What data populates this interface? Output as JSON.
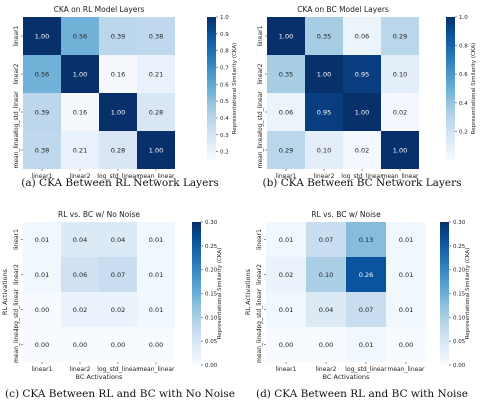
{
  "chart_data": [
    {
      "type": "heatmap",
      "title": "CKA on RL Model Layers",
      "caption": "(a) CKA Between RL Network Layers",
      "rows": [
        "linear1",
        "linear2",
        "log_std_linear",
        "mean_linear"
      ],
      "cols": [
        "linear1",
        "linear2",
        "log_std_linear",
        "mean_linear"
      ],
      "values": [
        [
          1.0,
          0.56,
          0.39,
          0.38
        ],
        [
          0.56,
          1.0,
          0.16,
          0.21
        ],
        [
          0.39,
          0.16,
          1.0,
          0.28
        ],
        [
          0.38,
          0.21,
          0.28,
          1.0
        ]
      ],
      "xlabel": "",
      "ylabel": "",
      "colorbar": {
        "label": "Representational Similarity (CKA)",
        "min": 0.15,
        "max": 1.0,
        "ticks": [
          "0.2",
          "0.3",
          "0.4",
          "0.5",
          "0.6",
          "0.7",
          "0.8",
          "0.9",
          "1.0"
        ]
      }
    },
    {
      "type": "heatmap",
      "title": "CKA on BC Model Layers",
      "caption": "(b) CKA Between BC Network Layers",
      "rows": [
        "linear1",
        "linear2",
        "log_std_linear",
        "mean_linear"
      ],
      "cols": [
        "linear1",
        "linear2",
        "log_std_linear",
        "mean_linear"
      ],
      "values": [
        [
          1.0,
          0.35,
          0.06,
          0.29
        ],
        [
          0.35,
          1.0,
          0.95,
          0.1
        ],
        [
          0.06,
          0.95,
          1.0,
          0.02
        ],
        [
          0.29,
          0.1,
          0.02,
          1.0
        ]
      ],
      "xlabel": "",
      "ylabel": "",
      "colorbar": {
        "label": "Representational Similarity (CKA)",
        "min": 0.0,
        "max": 1.0,
        "ticks": [
          "0.2",
          "0.4",
          "0.6",
          "0.8",
          "1.0"
        ]
      }
    },
    {
      "type": "heatmap",
      "title": "RL vs. BC w/ No Noise",
      "caption": "(c) CKA Between RL and BC with No Noise",
      "rows": [
        "linear1",
        "linear2",
        "log_std_linear",
        "mean_linear"
      ],
      "cols": [
        "linear1",
        "linear2",
        "log_std_linear",
        "mean_linear"
      ],
      "values": [
        [
          0.01,
          0.04,
          0.04,
          0.01
        ],
        [
          0.01,
          0.06,
          0.07,
          0.01
        ],
        [
          0.0,
          0.02,
          0.02,
          0.01
        ],
        [
          0.0,
          0.0,
          0.0,
          0.0
        ]
      ],
      "xlabel": "BC Activations",
      "ylabel": "RL Activations",
      "colorbar": {
        "label": "Representational Similarity (CKA)",
        "min": 0.0,
        "max": 0.3,
        "ticks": [
          "0.00",
          "0.05",
          "0.10",
          "0.15",
          "0.20",
          "0.25",
          "0.30"
        ]
      }
    },
    {
      "type": "heatmap",
      "title": "RL vs. BC w/ Noise",
      "caption": "(d) CKA Between RL and BC with Noise",
      "rows": [
        "linear1",
        "linear2",
        "log_std_linear",
        "mean_linear"
      ],
      "cols": [
        "linear1",
        "linear2",
        "log_std_linear",
        "mean_linear"
      ],
      "values": [
        [
          0.01,
          0.07,
          0.13,
          0.01
        ],
        [
          0.02,
          0.1,
          0.26,
          0.01
        ],
        [
          0.01,
          0.04,
          0.07,
          0.01
        ],
        [
          0.0,
          0.0,
          0.01,
          0.0
        ]
      ],
      "xlabel": "BC Activations",
      "ylabel": "RL Activations",
      "colorbar": {
        "label": "Representational Similarity (CKA)",
        "min": 0.0,
        "max": 0.3,
        "ticks": [
          "0.00",
          "0.05",
          "0.10",
          "0.15",
          "0.20",
          "0.25",
          "0.30"
        ]
      }
    }
  ]
}
